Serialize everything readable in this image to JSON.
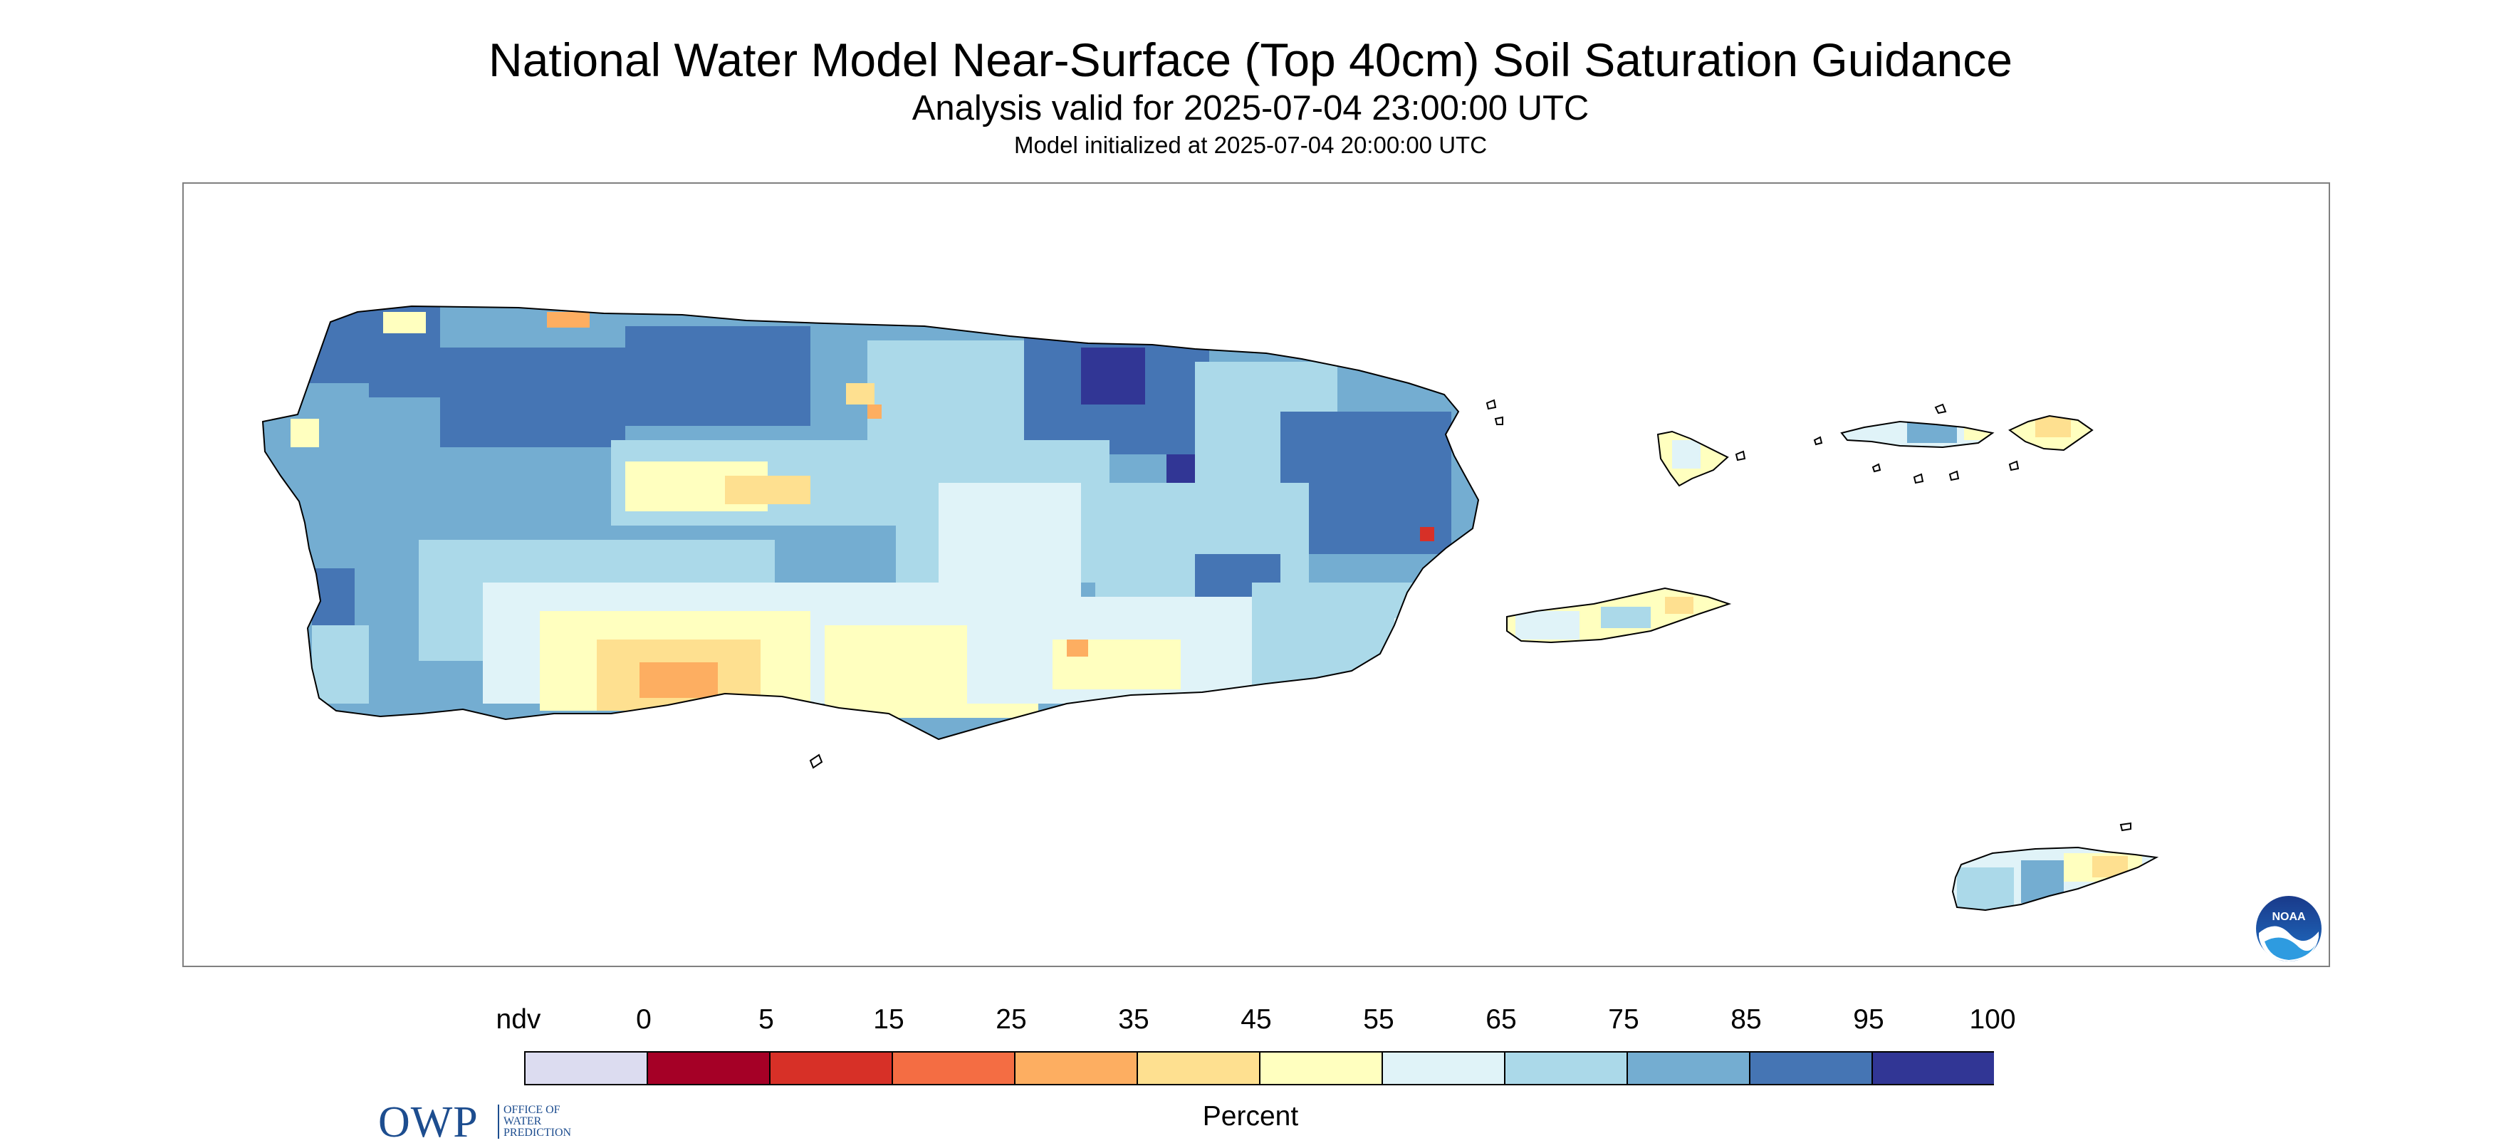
{
  "header": {
    "title": "National Water Model Near-Surface (Top 40cm) Soil Saturation Guidance",
    "subtitle": "Analysis valid for 2025-07-04 23:00:00 UTC",
    "init_line": "Model initialized at 2025-07-04 20:00:00 UTC"
  },
  "map": {
    "regions": [
      "Puerto Rico",
      "Vieques",
      "Culebra",
      "St. Thomas",
      "St. John",
      "St. Croix"
    ],
    "dominant_saturation": "65-95",
    "frame_color": "#808080",
    "coast_color": "#000000"
  },
  "logos": {
    "owp": {
      "letters": "OWP",
      "line1": "OFFICE OF",
      "line2": "WATER",
      "line3": "PREDICTION",
      "color": "#1d4d8f"
    },
    "noaa": {
      "text": "NOAA",
      "color": "#1f6fc4"
    }
  },
  "legend": {
    "ticks": [
      "ndv",
      "0",
      "5",
      "15",
      "25",
      "35",
      "45",
      "55",
      "65",
      "75",
      "85",
      "95",
      "100"
    ],
    "unit": "Percent",
    "colors": [
      "#dcdcf0",
      "#a50026",
      "#d73027",
      "#f46d43",
      "#fdae61",
      "#fee090",
      "#ffffbf",
      "#e0f3f8",
      "#abd9e9",
      "#74add1",
      "#4575b4",
      "#313695"
    ]
  }
}
